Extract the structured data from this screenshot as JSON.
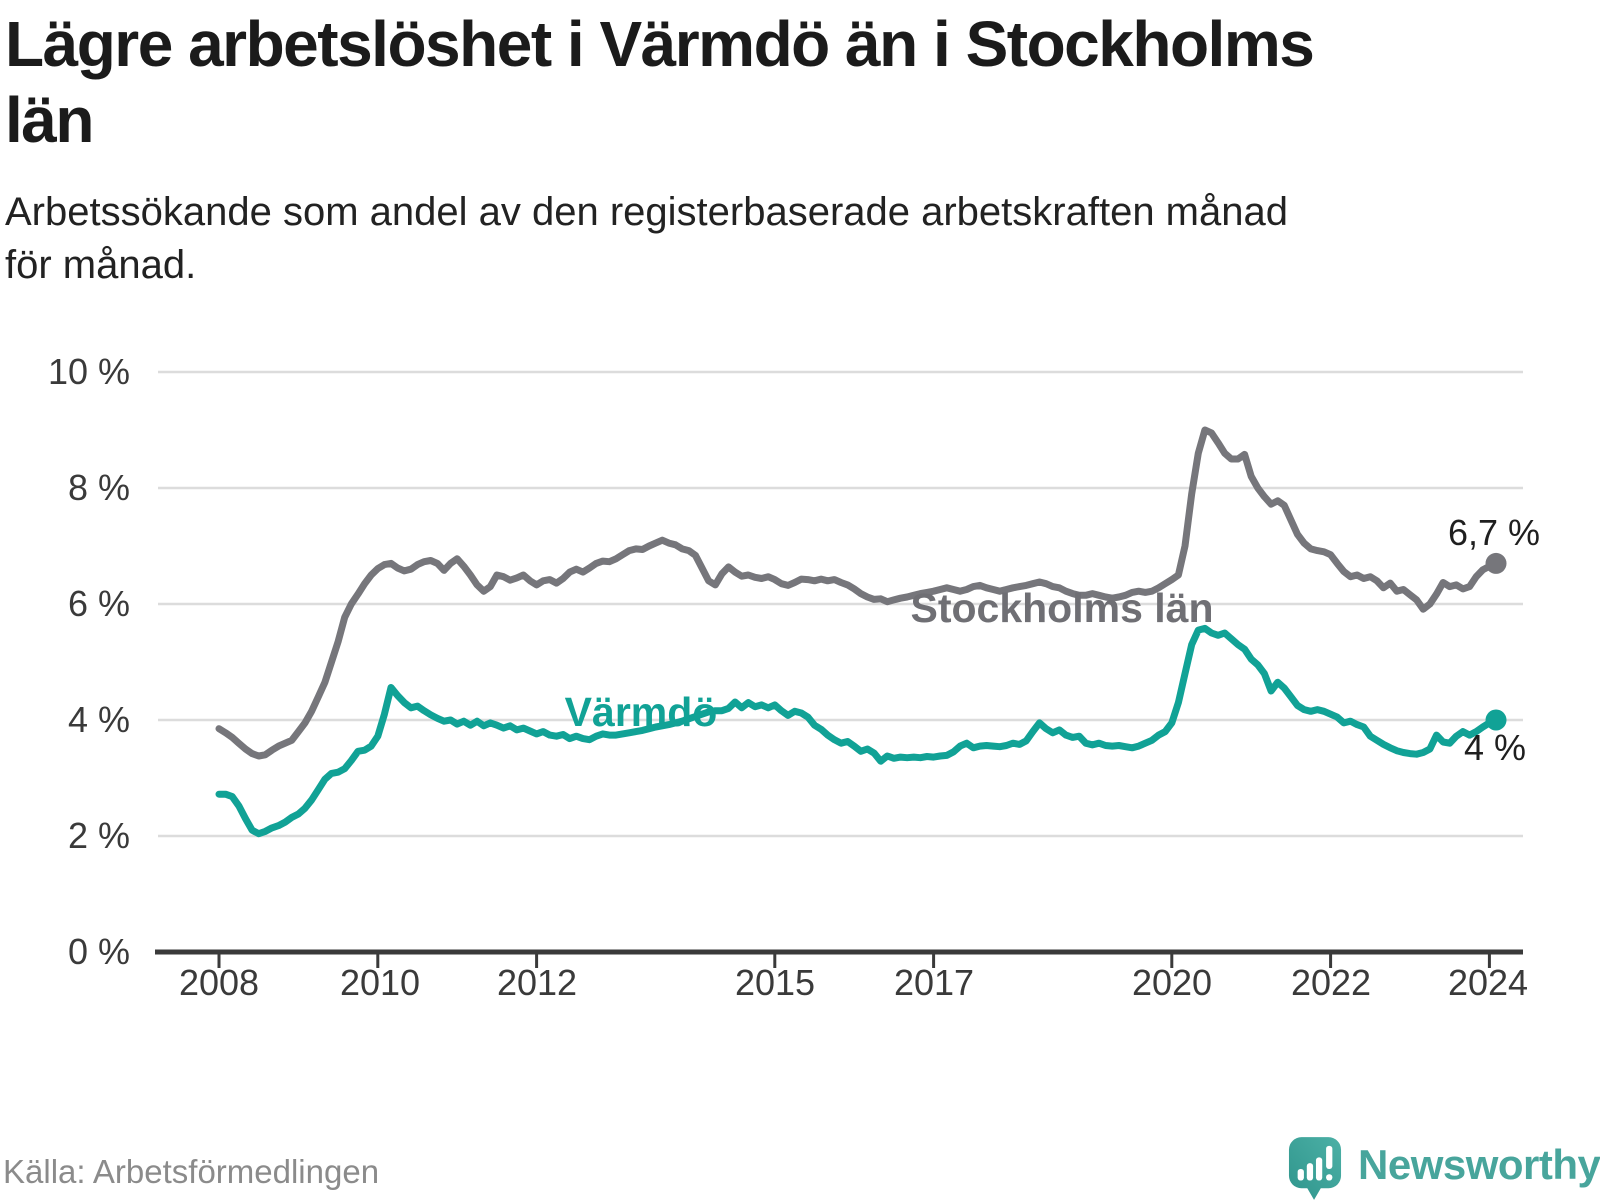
{
  "header": {
    "title_lines": [
      "Lägre arbetslöshet i Värmdö än i Stockholms",
      "län"
    ],
    "subtitle_lines": [
      "Arbetssökande som andel av den registerbaserade arbetskraften månad",
      "för månad."
    ]
  },
  "chart": {
    "y_axis": {
      "ticks": [
        "10 %",
        "8 %",
        "6 %",
        "4 %",
        "2 %",
        "0 %"
      ],
      "values": [
        10,
        8,
        6,
        4,
        2,
        0
      ]
    },
    "x_axis": {
      "ticks": [
        "2008",
        "2010",
        "2012",
        "2015",
        "2017",
        "2020",
        "2022",
        "2024"
      ],
      "years": [
        2008,
        2010,
        2012,
        2015,
        2017,
        2020,
        2022,
        2024
      ]
    },
    "series_labels": {
      "stockholm": "Stockholms län",
      "varmdo": "Värmdö"
    },
    "end_labels": {
      "stockholm": "6,7 %",
      "varmdo": "4 %"
    },
    "colors": {
      "stockholm": "#76767b",
      "stockholm_label": "#6f6f74",
      "varmdo": "#11a296",
      "grid": "#dcdcdc",
      "axis": "#3a3a3a",
      "brand": "#48a59c",
      "text": "#1f1f1f"
    }
  },
  "chart_data": {
    "type": "line",
    "title": "Lägre arbetslöshet i Värmdö än i Stockholms län",
    "xlabel": "",
    "ylabel": "Arbetssökande som andel av den registerbaserade arbetskraften",
    "unit": "%",
    "x_start_year": 2008,
    "x_start_month": 1,
    "frequency": "monthly",
    "xlim": [
      2007.15,
      2024.45
    ],
    "ylim": [
      0,
      10
    ],
    "grid": "horizontal",
    "legend_position": "inline-labels",
    "series": [
      {
        "name": "Stockholms län",
        "color": "#76767b",
        "last_value_label": "6,7 %",
        "values": [
          3.85,
          3.78,
          3.7,
          3.6,
          3.5,
          3.42,
          3.38,
          3.4,
          3.48,
          3.55,
          3.6,
          3.65,
          3.8,
          3.95,
          4.15,
          4.4,
          4.65,
          5.0,
          5.35,
          5.77,
          6.0,
          6.17,
          6.35,
          6.5,
          6.61,
          6.68,
          6.7,
          6.62,
          6.57,
          6.6,
          6.68,
          6.73,
          6.75,
          6.7,
          6.58,
          6.7,
          6.78,
          6.65,
          6.5,
          6.33,
          6.22,
          6.3,
          6.5,
          6.47,
          6.41,
          6.45,
          6.5,
          6.4,
          6.33,
          6.4,
          6.42,
          6.36,
          6.44,
          6.55,
          6.6,
          6.55,
          6.62,
          6.7,
          6.74,
          6.73,
          6.78,
          6.85,
          6.92,
          6.95,
          6.94,
          7.0,
          7.05,
          7.1,
          7.05,
          7.02,
          6.95,
          6.92,
          6.84,
          6.62,
          6.4,
          6.33,
          6.52,
          6.64,
          6.55,
          6.48,
          6.5,
          6.46,
          6.44,
          6.47,
          6.42,
          6.35,
          6.32,
          6.37,
          6.43,
          6.42,
          6.4,
          6.43,
          6.4,
          6.42,
          6.37,
          6.33,
          6.26,
          6.18,
          6.12,
          6.08,
          6.09,
          6.04,
          6.07,
          6.1,
          6.12,
          6.15,
          6.18,
          6.2,
          6.22,
          6.25,
          6.28,
          6.25,
          6.22,
          6.25,
          6.3,
          6.32,
          6.28,
          6.25,
          6.22,
          6.25,
          6.28,
          6.3,
          6.32,
          6.35,
          6.38,
          6.35,
          6.3,
          6.28,
          6.22,
          6.18,
          6.15,
          6.15,
          6.18,
          6.15,
          6.12,
          6.1,
          6.12,
          6.15,
          6.2,
          6.22,
          6.2,
          6.22,
          6.28,
          6.35,
          6.42,
          6.5,
          7.0,
          7.9,
          8.6,
          9.0,
          8.95,
          8.78,
          8.6,
          8.5,
          8.5,
          8.58,
          8.2,
          8.0,
          7.85,
          7.72,
          7.78,
          7.7,
          7.45,
          7.2,
          7.05,
          6.95,
          6.92,
          6.9,
          6.85,
          6.7,
          6.56,
          6.47,
          6.5,
          6.44,
          6.47,
          6.4,
          6.28,
          6.36,
          6.22,
          6.25,
          6.16,
          6.07,
          5.91,
          6.0,
          6.17,
          6.37,
          6.3,
          6.33,
          6.26,
          6.3,
          6.47,
          6.59,
          6.65,
          6.7
        ]
      },
      {
        "name": "Värmdö",
        "color": "#11a296",
        "last_value_label": "4 %",
        "values": [
          2.72,
          2.72,
          2.68,
          2.52,
          2.3,
          2.1,
          2.04,
          2.08,
          2.14,
          2.18,
          2.24,
          2.32,
          2.38,
          2.48,
          2.62,
          2.8,
          2.98,
          3.08,
          3.1,
          3.16,
          3.3,
          3.46,
          3.48,
          3.55,
          3.72,
          4.1,
          4.56,
          4.42,
          4.3,
          4.21,
          4.24,
          4.16,
          4.09,
          4.03,
          3.98,
          4.0,
          3.93,
          3.98,
          3.91,
          3.98,
          3.9,
          3.95,
          3.91,
          3.86,
          3.9,
          3.83,
          3.86,
          3.81,
          3.76,
          3.8,
          3.74,
          3.72,
          3.75,
          3.68,
          3.72,
          3.68,
          3.66,
          3.72,
          3.76,
          3.74,
          3.74,
          3.76,
          3.78,
          3.8,
          3.82,
          3.85,
          3.88,
          3.9,
          3.92,
          3.95,
          3.98,
          4.02,
          4.06,
          4.1,
          4.14,
          4.16,
          4.16,
          4.2,
          4.31,
          4.21,
          4.3,
          4.23,
          4.26,
          4.21,
          4.26,
          4.16,
          4.08,
          4.15,
          4.12,
          4.05,
          3.91,
          3.84,
          3.74,
          3.66,
          3.6,
          3.63,
          3.55,
          3.46,
          3.5,
          3.43,
          3.29,
          3.38,
          3.34,
          3.36,
          3.35,
          3.36,
          3.35,
          3.37,
          3.36,
          3.38,
          3.39,
          3.45,
          3.55,
          3.6,
          3.52,
          3.55,
          3.56,
          3.55,
          3.54,
          3.56,
          3.6,
          3.58,
          3.64,
          3.8,
          3.95,
          3.85,
          3.78,
          3.83,
          3.74,
          3.7,
          3.72,
          3.6,
          3.57,
          3.6,
          3.56,
          3.55,
          3.56,
          3.54,
          3.52,
          3.55,
          3.6,
          3.65,
          3.74,
          3.8,
          3.95,
          4.3,
          4.8,
          5.3,
          5.55,
          5.58,
          5.5,
          5.46,
          5.5,
          5.4,
          5.3,
          5.22,
          5.05,
          4.95,
          4.8,
          4.5,
          4.65,
          4.55,
          4.4,
          4.25,
          4.18,
          4.15,
          4.18,
          4.15,
          4.1,
          4.05,
          3.95,
          3.98,
          3.92,
          3.88,
          3.72,
          3.65,
          3.58,
          3.52,
          3.47,
          3.44,
          3.42,
          3.41,
          3.44,
          3.5,
          3.74,
          3.62,
          3.6,
          3.72,
          3.8,
          3.74,
          3.8,
          3.88,
          3.95,
          4.0
        ]
      }
    ]
  },
  "footer": {
    "source": "Källa: Arbetsförmedlingen",
    "brand": "Newsworthy"
  }
}
